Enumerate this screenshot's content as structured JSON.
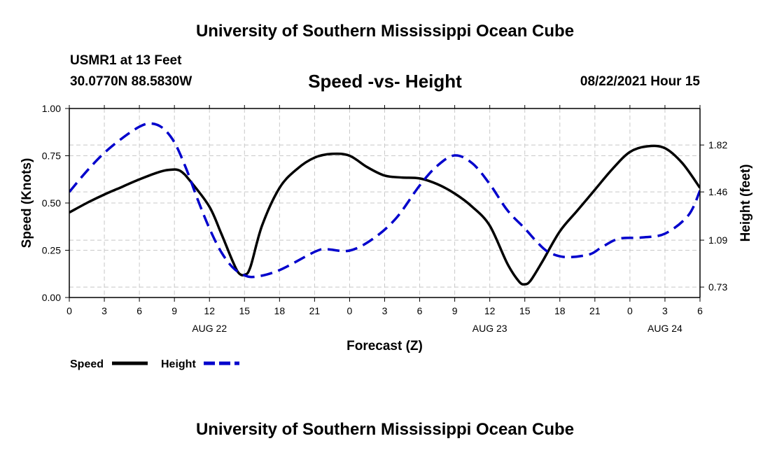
{
  "header": {
    "title": "University of Southern Mississippi Ocean Cube",
    "station": "USMR1 at 13 Feet",
    "coords": "30.0770N  88.5830W",
    "subtitle": "Speed -vs- Height",
    "datetime": "08/22/2021 Hour 15"
  },
  "footer": {
    "title": "University of Southern Mississippi Ocean Cube"
  },
  "chart_data": {
    "type": "line",
    "xlabel": "Forecast (Z)",
    "ylabel": "Speed (Knots)",
    "y2label": "Height (feet)",
    "xlim": [
      0,
      54
    ],
    "x_tick_values": [
      0,
      3,
      6,
      9,
      12,
      15,
      18,
      21,
      24,
      27,
      30,
      33,
      36,
      39,
      42,
      45,
      48,
      51,
      54
    ],
    "x_tick_labels": [
      "0",
      "3",
      "6",
      "9",
      "12",
      "15",
      "18",
      "21",
      "0",
      "3",
      "6",
      "9",
      "12",
      "15",
      "18",
      "21",
      "0",
      "3",
      "6"
    ],
    "date_labels": [
      {
        "x": 12,
        "label": "AUG 22"
      },
      {
        "x": 36,
        "label": "AUG 23"
      },
      {
        "x": 51,
        "label": "AUG 24"
      }
    ],
    "ylim": [
      0,
      1
    ],
    "y_ticks": [
      0,
      0.25,
      0.5,
      0.75,
      1.0
    ],
    "y_tick_labels": [
      "0.00",
      "0.25",
      "0.50",
      "0.75",
      "1.00"
    ],
    "y2lim": [
      0.65,
      2.1
    ],
    "y2_ticks": [
      0.73,
      1.09,
      1.46,
      1.82
    ],
    "y2_tick_labels": [
      "0.73",
      "1.09",
      "1.46",
      "1.82"
    ],
    "grid": true,
    "legend_position": "bottom-left",
    "series": [
      {
        "name": "Speed",
        "axis": "left",
        "color": "#000000",
        "style": "solid",
        "x": [
          0,
          1.5,
          3,
          4.5,
          6,
          7.5,
          8.5,
          9.5,
          10.5,
          12,
          13,
          14,
          14.5,
          15,
          15.5,
          16.5,
          18,
          19.5,
          21,
          22.5,
          24,
          25.5,
          27,
          28.5,
          30,
          31.5,
          33,
          34.5,
          36,
          37.5,
          38.5,
          39,
          39.5,
          40.5,
          42,
          43.5,
          45,
          46.5,
          48,
          49.5,
          51,
          52.5,
          54
        ],
        "y": [
          0.45,
          0.5,
          0.545,
          0.585,
          0.625,
          0.66,
          0.675,
          0.67,
          0.605,
          0.48,
          0.34,
          0.19,
          0.13,
          0.12,
          0.16,
          0.38,
          0.58,
          0.68,
          0.74,
          0.76,
          0.75,
          0.69,
          0.645,
          0.635,
          0.63,
          0.6,
          0.55,
          0.48,
          0.38,
          0.18,
          0.085,
          0.07,
          0.09,
          0.19,
          0.35,
          0.46,
          0.57,
          0.68,
          0.77,
          0.8,
          0.79,
          0.71,
          0.58
        ]
      },
      {
        "name": "Height",
        "axis": "right",
        "color": "#0000cc",
        "style": "dashed",
        "x": [
          0,
          1.5,
          3,
          4.5,
          6,
          7,
          8,
          9,
          10,
          11,
          12,
          13,
          14,
          15,
          16,
          18,
          21,
          22,
          24,
          26,
          28,
          30,
          31.5,
          33,
          34.5,
          36,
          37.5,
          39,
          40,
          41,
          42.5,
          44.5,
          45.5,
          47,
          49,
          51,
          53,
          54
        ],
        "y": [
          1.46,
          1.62,
          1.76,
          1.87,
          1.96,
          1.985,
          1.95,
          1.84,
          1.64,
          1.4,
          1.18,
          1.0,
          0.88,
          0.82,
          0.81,
          0.86,
          1.0,
          1.02,
          1.01,
          1.1,
          1.26,
          1.51,
          1.66,
          1.74,
          1.68,
          1.52,
          1.32,
          1.18,
          1.08,
          1.0,
          0.96,
          0.98,
          1.03,
          1.1,
          1.11,
          1.14,
          1.28,
          1.47
        ]
      }
    ]
  }
}
